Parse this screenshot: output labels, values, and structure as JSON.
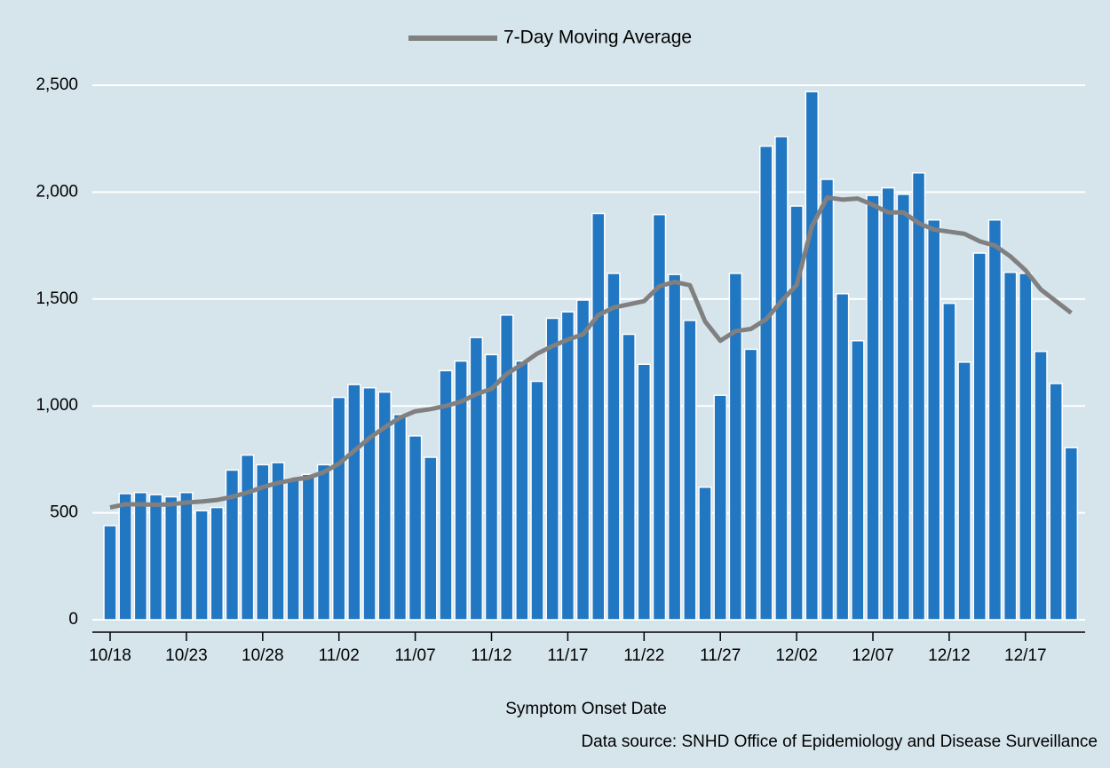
{
  "chart_data": {
    "type": "bar",
    "legend_position": "top",
    "x_label": "Symptom Onset Date",
    "source": "Data source: SNHD Office of Epidemiology and Disease Surveillance",
    "categories": [
      "10/18",
      null,
      null,
      null,
      null,
      "10/23",
      null,
      null,
      null,
      null,
      "10/28",
      null,
      null,
      null,
      null,
      "11/02",
      null,
      null,
      null,
      null,
      "11/07",
      null,
      null,
      null,
      null,
      "11/12",
      null,
      null,
      null,
      null,
      "11/17",
      null,
      null,
      null,
      null,
      "11/22",
      null,
      null,
      null,
      null,
      "11/27",
      null,
      null,
      null,
      null,
      "12/02",
      null,
      null,
      null,
      null,
      "12/07",
      null,
      null,
      null,
      null,
      "12/12",
      null,
      null,
      null,
      null,
      "12/17",
      null,
      null,
      null
    ],
    "series": [
      {
        "type": "bar",
        "color": "#2277c3",
        "values": [
          440,
          590,
          595,
          585,
          575,
          595,
          510,
          525,
          700,
          770,
          725,
          735,
          660,
          680,
          725,
          1040,
          1100,
          1085,
          1065,
          960,
          860,
          760,
          1165,
          1210,
          1320,
          1240,
          1425,
          1210,
          1115,
          1410,
          1440,
          1495,
          1900,
          1620,
          1335,
          1195,
          1895,
          1615,
          1400,
          620,
          1050,
          1620,
          1265,
          2215,
          2260,
          1935,
          2470,
          2060,
          1525,
          1305,
          1985,
          2020,
          1990,
          2090,
          1870,
          1480,
          1205,
          1715,
          1870,
          1625,
          1620,
          1255,
          1105,
          805
        ]
      },
      {
        "type": "line",
        "name": "7-Day Moving Average",
        "color": "#808080",
        "values": [
          525,
          540,
          540,
          538,
          540,
          548,
          553,
          560,
          575,
          595,
          620,
          640,
          655,
          665,
          690,
          730,
          790,
          850,
          900,
          945,
          975,
          985,
          1000,
          1020,
          1055,
          1080,
          1150,
          1195,
          1245,
          1280,
          1310,
          1335,
          1425,
          1460,
          1475,
          1490,
          1560,
          1580,
          1565,
          1395,
          1305,
          1350,
          1360,
          1405,
          1490,
          1565,
          1840,
          1975,
          1965,
          1970,
          1940,
          1905,
          1905,
          1855,
          1825,
          1815,
          1805,
          1770,
          1750,
          1700,
          1635,
          1545,
          1490,
          1435
        ]
      }
    ],
    "ylim": [
      0,
      2500
    ],
    "yticks": [
      0,
      500,
      {
        "value": 1000,
        "label": "1,000"
      },
      {
        "value": 1500,
        "label": "1,500"
      },
      {
        "value": 2000,
        "label": "2,000"
      },
      {
        "value": 2500,
        "label": "2,500"
      }
    ],
    "grid": true
  }
}
